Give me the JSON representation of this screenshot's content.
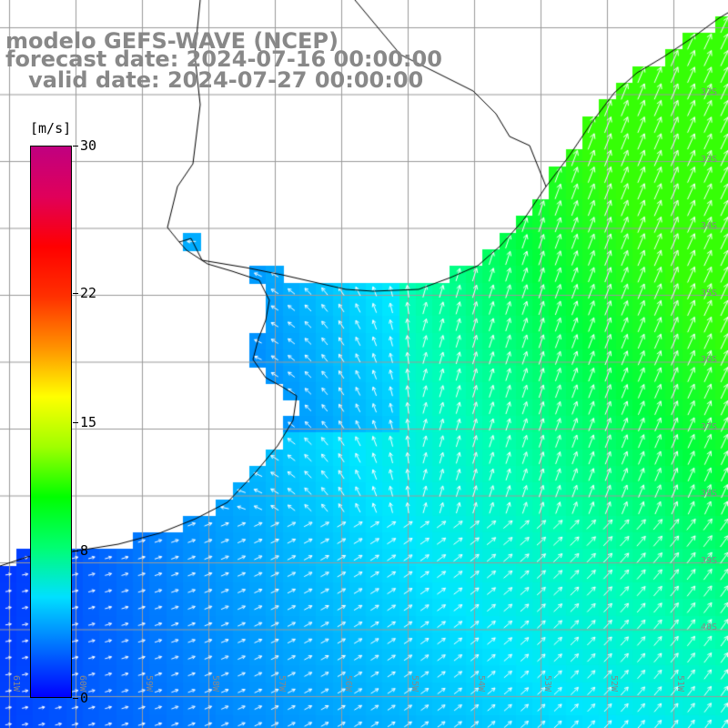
{
  "title": {
    "line1": "modelo GEFS-WAVE (NCEP)",
    "line2": "forecast date: 2024-07-16 00:00:00",
    "line3": "   valid date: 2024-07-27 00:00:00"
  },
  "colorbar": {
    "unit": "[m/s]",
    "min": 0,
    "max": 30,
    "ticks": [
      "30",
      "22",
      "15",
      "8",
      "0"
    ],
    "tick_values": [
      30,
      22,
      15,
      8,
      0
    ],
    "colors": [
      "#0000ff",
      "#0070ff",
      "#00e0ff",
      "#00ff70",
      "#00ff00",
      "#a0ff00",
      "#ffff00",
      "#ff9000",
      "#ff3000",
      "#ff0000",
      "#e0005a",
      "#c00080"
    ]
  },
  "map": {
    "lat_labels": [
      "32S",
      "33S",
      "34S",
      "35S",
      "36S",
      "37S",
      "38S",
      "39S",
      "40S"
    ],
    "lon_labels": [
      "61W",
      "60W",
      "59W",
      "58W",
      "57W",
      "56W",
      "55W",
      "54W",
      "53W",
      "52W",
      "51W"
    ],
    "coast_color": "#000000",
    "grid_color": "#9a9a9a",
    "arrow_color": "#ffffff"
  }
}
